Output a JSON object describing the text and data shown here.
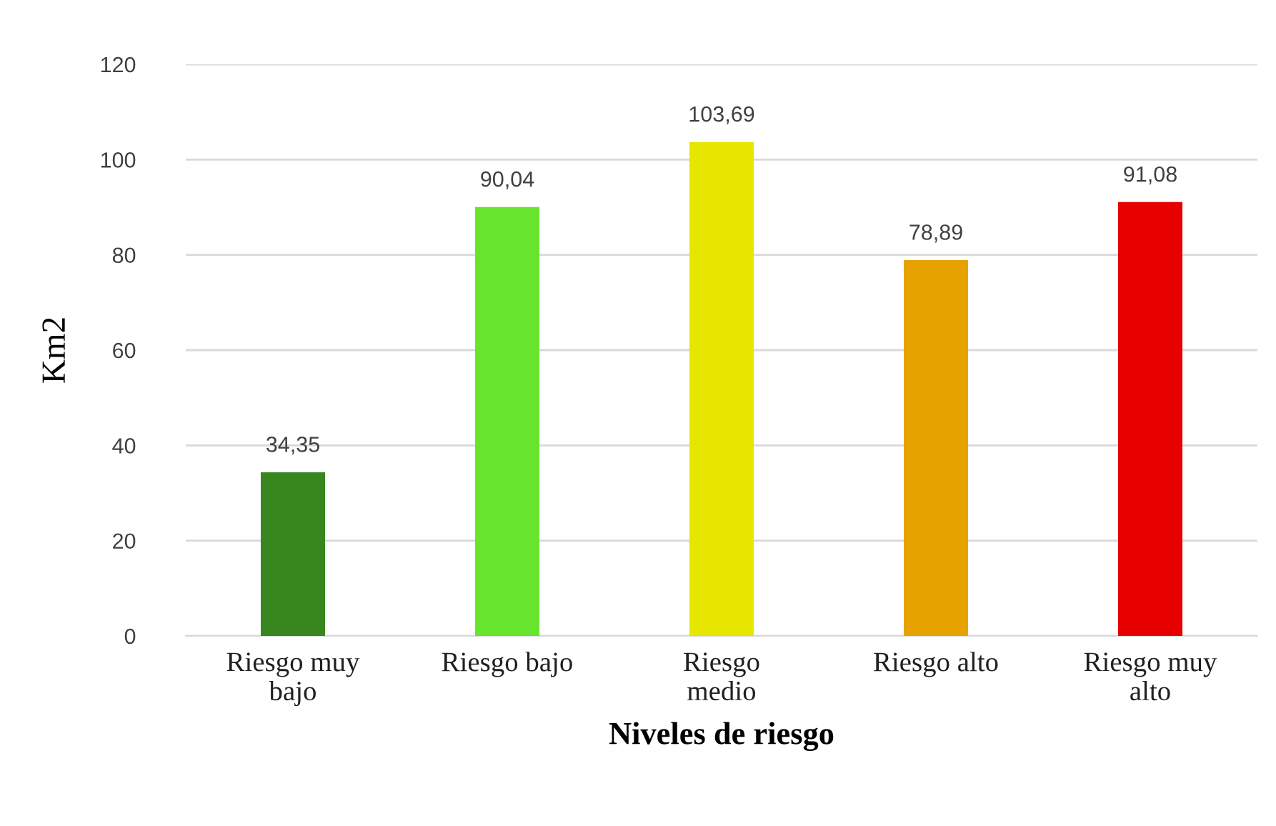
{
  "chart_data": {
    "type": "bar",
    "xlabel": "Niveles de riesgo",
    "ylabel": "Km2",
    "categories": [
      "Riesgo muy\nbajo",
      "Riesgo bajo",
      "Riesgo\nmedio",
      "Riesgo alto",
      "Riesgo muy\nalto"
    ],
    "values": [
      34.35,
      90.04,
      103.69,
      78.89,
      91.08
    ],
    "colors": [
      "#38861e",
      "#66e42e",
      "#e6e600",
      "#e6a300",
      "#e60000"
    ],
    "value_labels": [
      "34,35",
      "90,04",
      "103,69",
      "78,89",
      "91,08"
    ],
    "ylim": [
      0,
      120
    ],
    "yticks": [
      0,
      20,
      40,
      60,
      80,
      100,
      120
    ],
    "grid": "y",
    "legend": false
  }
}
